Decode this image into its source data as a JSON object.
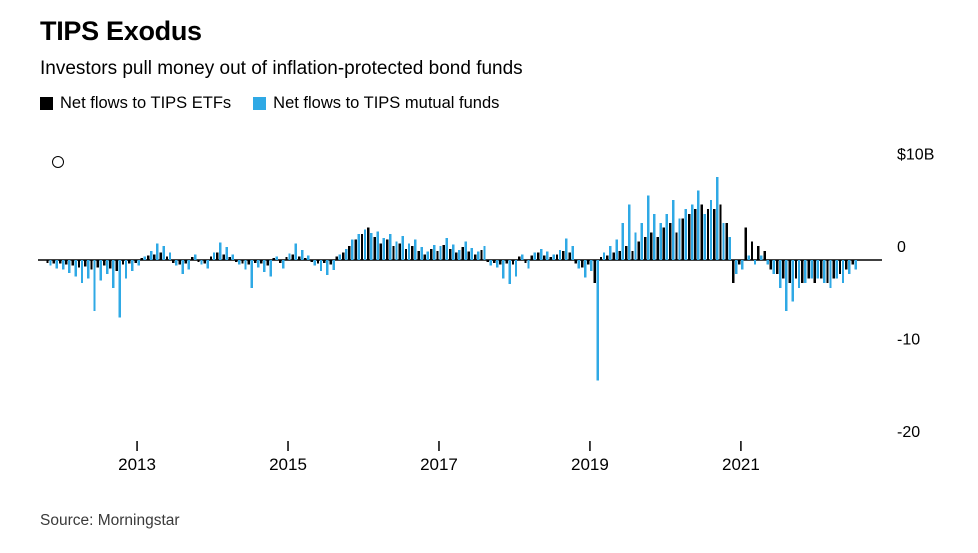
{
  "page": {
    "title": "TIPS Exodus",
    "subtitle": "Investors pull money out of inflation-protected bond funds",
    "source": "Source: Morningstar"
  },
  "legend": {
    "items": [
      {
        "label": "Net flows to TIPS ETFs",
        "color": "#000000"
      },
      {
        "label": "Net flows to TIPS mutual funds",
        "color": "#2fa9e5"
      }
    ]
  },
  "colors": {
    "etf_bars": "#000000",
    "mutual_fund_bars": "#2fa9e5",
    "axis": "#000000",
    "background": "#ffffff"
  },
  "chart_data": {
    "type": "bar",
    "title": "TIPS Exodus",
    "subtitle": "Investors pull money out of inflation-protected bond funds",
    "unit": "billions USD",
    "frequency": "monthly",
    "x_start": "2011-11",
    "x_end": "2022-07",
    "x_tick_labels": [
      "2013",
      "2015",
      "2017",
      "2019",
      "2021"
    ],
    "x_tick_years": [
      2013,
      2015,
      2017,
      2019,
      2021
    ],
    "y_tick_labels": [
      "$10B",
      "0",
      "-10",
      "-20"
    ],
    "y_ticks": [
      10,
      0,
      -10,
      -20
    ],
    "ylim": [
      -22,
      12
    ],
    "grid": false,
    "legend_position": "top-left",
    "series": [
      {
        "name": "Net flows to TIPS ETFs",
        "color": "#000000",
        "values": [
          -0.3,
          -0.4,
          -0.4,
          -0.5,
          -0.6,
          -0.8,
          -0.7,
          -1.0,
          -0.8,
          -0.6,
          -0.9,
          -1.2,
          -0.5,
          -0.4,
          -0.3,
          0.2,
          0.5,
          0.6,
          0.8,
          0.4,
          -0.3,
          -0.5,
          -0.4,
          0.3,
          -0.2,
          -0.4,
          0.4,
          0.8,
          0.6,
          0.3,
          -0.2,
          -0.4,
          -0.5,
          -0.3,
          -0.4,
          -0.6,
          0.2,
          -0.3,
          0.3,
          0.6,
          0.4,
          0.2,
          -0.2,
          -0.4,
          -0.3,
          -0.5,
          0.4,
          0.8,
          1.5,
          2.2,
          2.8,
          3.5,
          2.5,
          1.8,
          2.2,
          1.5,
          1.8,
          1.2,
          1.5,
          1.0,
          0.6,
          1.2,
          1.0,
          1.6,
          1.2,
          0.8,
          1.4,
          0.9,
          0.6,
          1.1,
          -0.2,
          -0.3,
          -0.5,
          -0.4,
          -0.5,
          0.4,
          -0.3,
          0.5,
          0.8,
          0.5,
          0.3,
          0.6,
          1.0,
          0.8,
          -0.4,
          -0.8,
          -0.5,
          -2.5,
          0.3,
          0.5,
          0.8,
          1.0,
          1.5,
          1.0,
          2.0,
          2.5,
          3.0,
          2.5,
          3.5,
          4.0,
          3.0,
          4.5,
          5.0,
          5.5,
          6.0,
          5.5,
          5.5,
          6.0,
          4.0,
          -2.5,
          -0.5,
          3.5,
          2.0,
          1.5,
          1.0,
          -1.0,
          -1.5,
          -2.0,
          -2.5,
          -2.0,
          -2.5,
          -2.0,
          -2.5,
          -2.0,
          -2.5,
          -2.0,
          -1.5,
          -1.0,
          -0.5
        ]
      },
      {
        "name": "Net flows to TIPS mutual funds",
        "color": "#2fa9e5",
        "values": [
          -0.6,
          -0.9,
          -1.0,
          -1.4,
          -1.8,
          -2.5,
          -2.0,
          -5.5,
          -2.2,
          -1.5,
          -3.0,
          -6.2,
          -2.0,
          -1.2,
          -0.6,
          0.4,
          1.0,
          1.8,
          1.5,
          0.8,
          -0.6,
          -1.5,
          -1.0,
          0.6,
          -0.5,
          -0.9,
          0.8,
          1.9,
          1.4,
          0.6,
          -0.5,
          -1.0,
          -3.0,
          -0.8,
          -1.3,
          -1.8,
          0.4,
          -0.9,
          0.7,
          1.8,
          1.1,
          0.5,
          -0.6,
          -1.2,
          -1.6,
          -1.1,
          0.6,
          1.2,
          2.2,
          2.8,
          3.3,
          2.9,
          3.1,
          2.4,
          2.8,
          2.0,
          2.6,
          1.8,
          2.2,
          1.4,
          0.9,
          1.6,
          1.5,
          2.4,
          1.7,
          1.1,
          2.0,
          1.3,
          0.9,
          1.5,
          -0.6,
          -0.8,
          -2.0,
          -2.6,
          -1.8,
          0.6,
          -0.9,
          0.8,
          1.2,
          0.9,
          0.6,
          1.1,
          2.3,
          1.5,
          -0.9,
          -1.9,
          -1.2,
          -13.0,
          0.8,
          1.5,
          2.2,
          4.0,
          6.0,
          3.0,
          4.0,
          7.0,
          5.0,
          4.0,
          5.0,
          6.5,
          4.5,
          5.5,
          6.0,
          7.5,
          5.0,
          6.5,
          9.0,
          4.0,
          2.5,
          -1.5,
          -1.0,
          0.5,
          -0.5,
          0.5,
          -0.5,
          -1.5,
          -3.0,
          -5.5,
          -4.5,
          -3.0,
          -2.5,
          -2.0,
          -2.0,
          -2.5,
          -3.0,
          -2.0,
          -2.5,
          -1.5,
          -1.0
        ]
      }
    ]
  }
}
